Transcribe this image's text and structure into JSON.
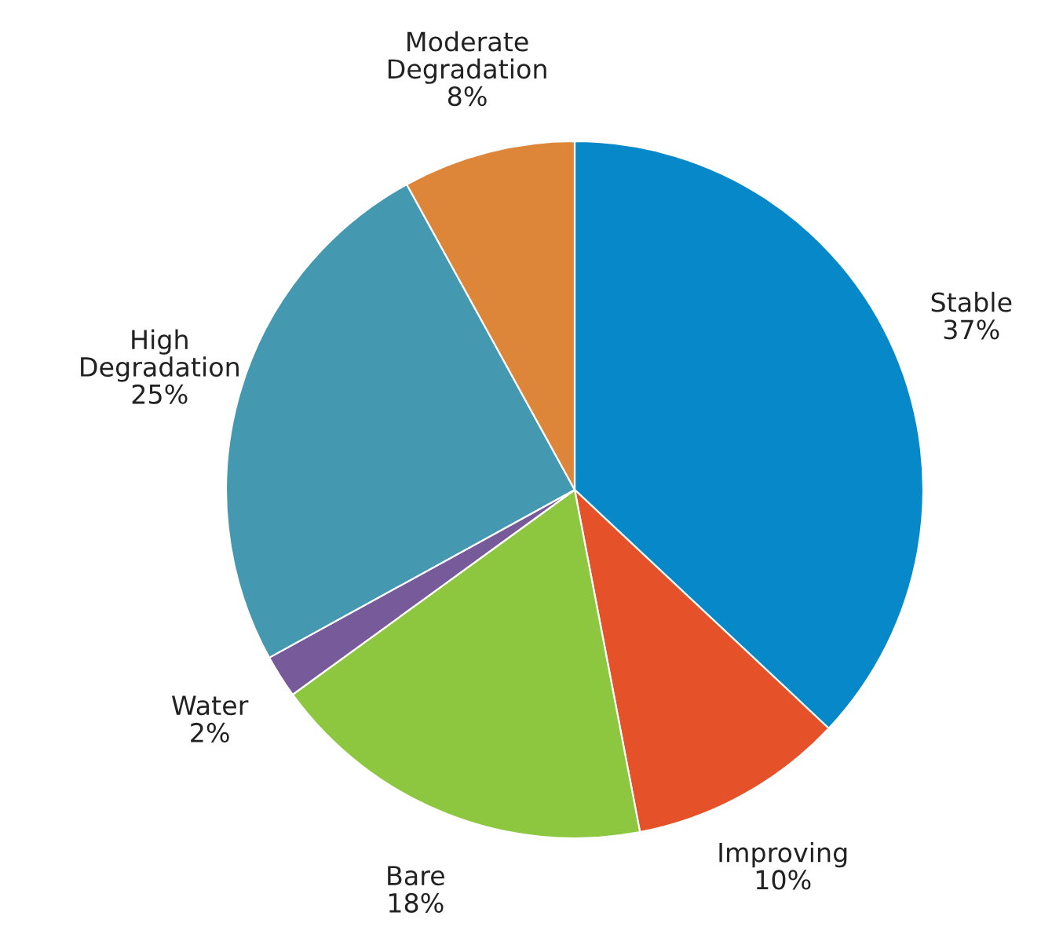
{
  "chart_data": {
    "type": "pie",
    "categories": [
      "Stable",
      "Improving",
      "Bare",
      "Water",
      "High\nDegradation",
      "Moderate\nDegradation"
    ],
    "values": [
      37,
      10,
      18,
      2,
      25,
      8
    ],
    "value_labels": [
      "37%",
      "10%",
      "18%",
      "2%",
      "25%",
      "8%"
    ],
    "colors": [
      "#0788c8",
      "#e5522a",
      "#8dc63f",
      "#775a9a",
      "#4499b0",
      "#dd8639"
    ]
  }
}
